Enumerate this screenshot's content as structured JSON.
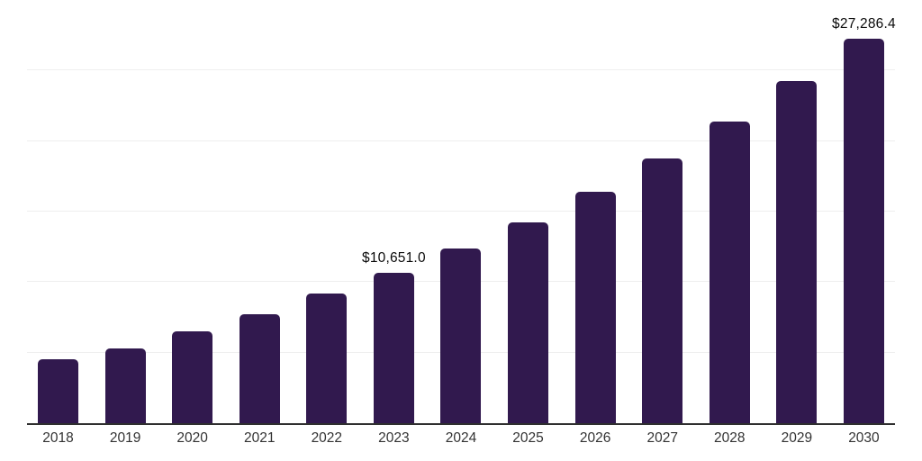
{
  "chart_data": {
    "type": "bar",
    "title": "",
    "xlabel": "",
    "ylabel": "",
    "categories": [
      "2018",
      "2019",
      "2020",
      "2021",
      "2022",
      "2023",
      "2024",
      "2025",
      "2026",
      "2027",
      "2028",
      "2029",
      "2030"
    ],
    "values": [
      4550,
      5330,
      6540,
      7700,
      9170,
      10651.0,
      12380,
      14240,
      16420,
      18740,
      21370,
      24250,
      27286.4
    ],
    "labeled_points": [
      {
        "category": "2023",
        "label": "$10,651.0"
      },
      {
        "category": "2030",
        "label": "$27,286.4"
      }
    ],
    "ylim": [
      0,
      30000
    ],
    "gridline_step": 5000,
    "grid": "horizontal-only, no y tick labels",
    "legend": "none",
    "bar_color": "#31194E",
    "axis_line_color": "#2F2F2F",
    "gridline_color": "#EFEFEF",
    "value_label_color": "#0A0A0A",
    "tick_label_color": "#333333",
    "background_color": "#FFFFFF"
  }
}
